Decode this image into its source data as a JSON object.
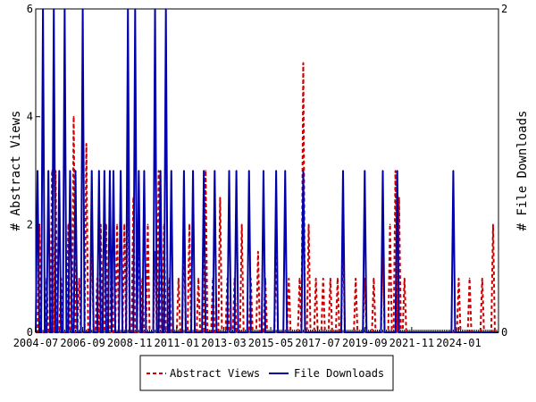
{
  "chart_data": {
    "type": "line",
    "title": "",
    "xlabel": "",
    "ylabel": "# Abstract Views",
    "y2label": "# File Downloads",
    "x_start": "2004-07",
    "x_end": "2025-11",
    "ylim": [
      0,
      6
    ],
    "y2lim": [
      0,
      2
    ],
    "yticks": [
      "0",
      "2",
      "4",
      "6"
    ],
    "y2ticks": [
      "0",
      "2"
    ],
    "xticks": [
      "2004-07",
      "2006-09",
      "2008-11",
      "2011-01",
      "2013-03",
      "2015-05",
      "2017-07",
      "2019-09",
      "2021-11",
      "2024-01"
    ],
    "grid": false,
    "legend_position": "bottom",
    "series": [
      {
        "name": "Abstract Views",
        "axis": "left",
        "color": "#cc0000",
        "dash": "dashed",
        "points": [
          [
            "2004-09",
            2
          ],
          [
            "2005-01",
            1
          ],
          [
            "2005-04",
            3
          ],
          [
            "2005-06",
            3
          ],
          [
            "2005-09",
            1
          ],
          [
            "2006-01",
            2
          ],
          [
            "2006-04",
            4
          ],
          [
            "2006-07",
            1
          ],
          [
            "2006-11",
            3.5
          ],
          [
            "2007-02",
            2
          ],
          [
            "2007-05",
            1
          ],
          [
            "2007-07",
            2
          ],
          [
            "2007-10",
            2
          ],
          [
            "2008-01",
            1.5
          ],
          [
            "2008-04",
            2
          ],
          [
            "2008-08",
            2
          ],
          [
            "2008-10",
            3
          ],
          [
            "2009-01",
            2.5
          ],
          [
            "2009-04",
            2
          ],
          [
            "2009-06",
            1
          ],
          [
            "2009-09",
            2
          ],
          [
            "2010-01",
            1.5
          ],
          [
            "2010-03",
            3
          ],
          [
            "2010-06",
            2
          ],
          [
            "2010-09",
            1
          ],
          [
            "2011-02",
            1
          ],
          [
            "2011-05",
            2
          ],
          [
            "2011-08",
            2
          ],
          [
            "2012-01",
            1
          ],
          [
            "2012-05",
            3
          ],
          [
            "2012-09",
            1
          ],
          [
            "2013-01",
            2.5
          ],
          [
            "2013-05",
            1
          ],
          [
            "2013-09",
            1
          ],
          [
            "2014-01",
            2
          ],
          [
            "2014-06",
            1
          ],
          [
            "2014-10",
            1.5
          ],
          [
            "2015-02",
            1
          ],
          [
            "2015-08",
            1.5
          ],
          [
            "2016-03",
            1
          ],
          [
            "2016-09",
            1
          ],
          [
            "2016-11",
            5
          ],
          [
            "2017-02",
            2
          ],
          [
            "2017-06",
            1
          ],
          [
            "2017-10",
            1
          ],
          [
            "2018-02",
            1
          ],
          [
            "2018-06",
            1
          ],
          [
            "2018-09",
            2
          ],
          [
            "2019-04",
            1
          ],
          [
            "2019-09",
            1
          ],
          [
            "2020-02",
            1
          ],
          [
            "2020-07",
            1.5
          ],
          [
            "2020-11",
            2
          ],
          [
            "2021-02",
            3
          ],
          [
            "2021-04",
            2.5
          ],
          [
            "2021-07",
            1
          ],
          [
            "2024-01",
            1
          ],
          [
            "2024-07",
            1
          ],
          [
            "2025-02",
            1
          ],
          [
            "2025-08",
            2
          ]
        ]
      },
      {
        "name": "File Downloads",
        "axis": "right",
        "color": "#0000aa",
        "dash": "solid",
        "points": [
          [
            "2004-08",
            1
          ],
          [
            "2004-11",
            2
          ],
          [
            "2005-02",
            1
          ],
          [
            "2005-05",
            2
          ],
          [
            "2005-08",
            1
          ],
          [
            "2005-11",
            2
          ],
          [
            "2006-02",
            1
          ],
          [
            "2006-05",
            1
          ],
          [
            "2006-09",
            2
          ],
          [
            "2007-02",
            1
          ],
          [
            "2007-06",
            1
          ],
          [
            "2007-09",
            1
          ],
          [
            "2007-12",
            1
          ],
          [
            "2008-02",
            1
          ],
          [
            "2008-06",
            1
          ],
          [
            "2008-10",
            2
          ],
          [
            "2009-02",
            2
          ],
          [
            "2009-04",
            1
          ],
          [
            "2009-07",
            1
          ],
          [
            "2010-01",
            2
          ],
          [
            "2010-04",
            1
          ],
          [
            "2010-07",
            2
          ],
          [
            "2010-10",
            1
          ],
          [
            "2011-05",
            1
          ],
          [
            "2011-10",
            1
          ],
          [
            "2012-04",
            1
          ],
          [
            "2012-10",
            1
          ],
          [
            "2013-06",
            1
          ],
          [
            "2013-10",
            1
          ],
          [
            "2014-05",
            1
          ],
          [
            "2015-01",
            1
          ],
          [
            "2015-08",
            1
          ],
          [
            "2016-01",
            1
          ],
          [
            "2016-11",
            1
          ],
          [
            "2018-09",
            1
          ],
          [
            "2019-09",
            1
          ],
          [
            "2020-07",
            1
          ],
          [
            "2021-03",
            1
          ],
          [
            "2023-10",
            1
          ]
        ]
      }
    ]
  }
}
